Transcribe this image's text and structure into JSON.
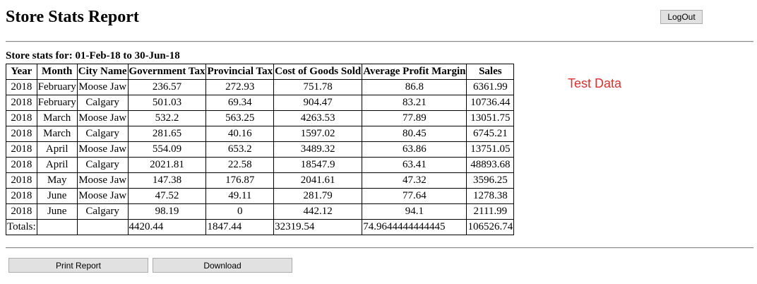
{
  "header": {
    "title": "Store Stats Report",
    "logout_label": "LogOut"
  },
  "report": {
    "period_label": "Store stats for: 01-Feb-18 to 30-Jun-18",
    "columns": [
      "Year",
      "Month",
      "City Name",
      "Government Tax",
      "Provincial Tax",
      "Cost of Goods Sold",
      "Average Profit Margin",
      "Sales"
    ],
    "rows": [
      [
        "2018",
        "February",
        "Moose Jaw",
        "236.57",
        "272.93",
        "751.78",
        "86.8",
        "6361.99"
      ],
      [
        "2018",
        "February",
        "Calgary",
        "501.03",
        "69.34",
        "904.47",
        "83.21",
        "10736.44"
      ],
      [
        "2018",
        "March",
        "Moose Jaw",
        "532.2",
        "563.25",
        "4263.53",
        "77.89",
        "13051.75"
      ],
      [
        "2018",
        "March",
        "Calgary",
        "281.65",
        "40.16",
        "1597.02",
        "80.45",
        "6745.21"
      ],
      [
        "2018",
        "April",
        "Moose Jaw",
        "554.09",
        "653.2",
        "3489.32",
        "63.86",
        "13751.05"
      ],
      [
        "2018",
        "April",
        "Calgary",
        "2021.81",
        "22.58",
        "18547.9",
        "63.41",
        "48893.68"
      ],
      [
        "2018",
        "May",
        "Moose Jaw",
        "147.38",
        "176.87",
        "2041.61",
        "47.32",
        "3596.25"
      ],
      [
        "2018",
        "June",
        "Moose Jaw",
        "47.52",
        "49.11",
        "281.79",
        "77.64",
        "1278.38"
      ],
      [
        "2018",
        "June",
        "Calgary",
        "98.19",
        "0",
        "442.12",
        "94.1",
        "2111.99"
      ]
    ],
    "totals": [
      "Totals:",
      "",
      "",
      "4420.44",
      "1847.44",
      "32319.54",
      "74.9644444444445",
      "106526.74"
    ]
  },
  "annotation": {
    "text": "Test Data",
    "color": "#e03030"
  },
  "actions": {
    "print_label": "Print Report",
    "download_label": "Download"
  }
}
